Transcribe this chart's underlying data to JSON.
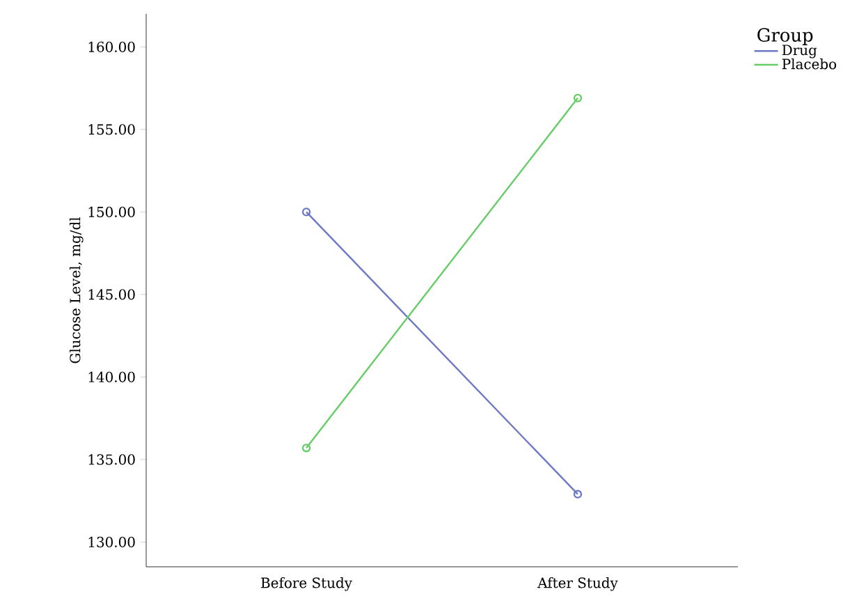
{
  "chart_data": {
    "type": "line",
    "ylabel": "Glucose Level, mg/dl",
    "legend_title": "Group",
    "categories": [
      "Before Study",
      "After Study"
    ],
    "series": [
      {
        "name": "Drug",
        "color": "#6c78c4",
        "values": [
          150.0,
          132.9
        ]
      },
      {
        "name": "Placebo",
        "color": "#66cc66",
        "values": [
          135.7,
          156.9
        ]
      }
    ],
    "ylim": [
      128.5,
      162
    ],
    "yticks": [
      {
        "value": 130,
        "label": "130.00"
      },
      {
        "value": 135,
        "label": "135.00"
      },
      {
        "value": 140,
        "label": "140.00"
      },
      {
        "value": 145,
        "label": "145.00"
      },
      {
        "value": 150,
        "label": "150.00"
      },
      {
        "value": 155,
        "label": "155.00"
      },
      {
        "value": 160,
        "label": "160.00"
      }
    ],
    "marker": "circle",
    "legend": "top right",
    "grid": false
  }
}
